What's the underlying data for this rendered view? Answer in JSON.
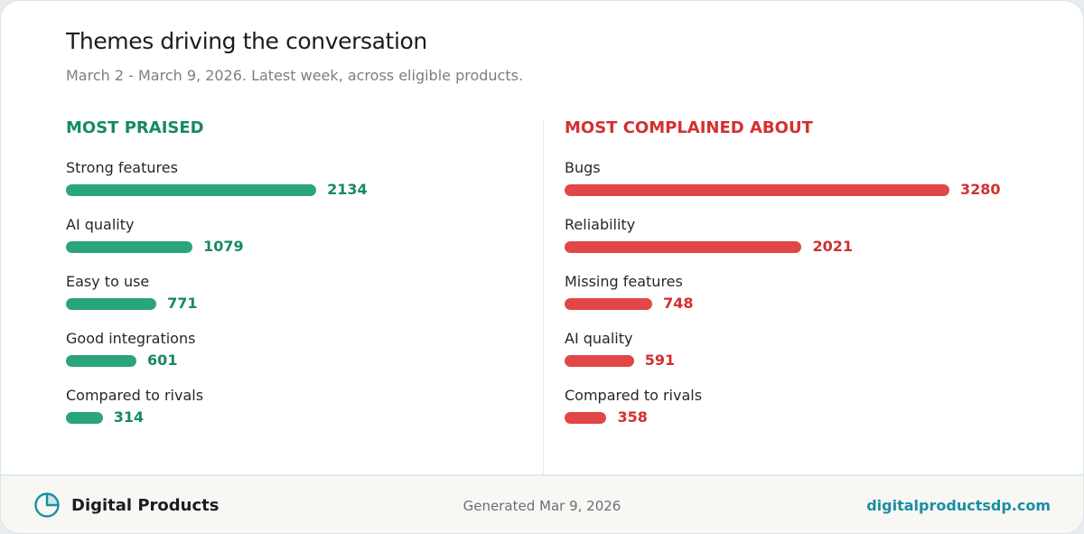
{
  "header": {
    "title": "Themes driving the conversation",
    "subtitle": "March 2 - March 9, 2026. Latest week, across eligible products."
  },
  "colors": {
    "praise": "#2aa57b",
    "praise_text": "#168a61",
    "complaint": "#e34646",
    "complaint_text": "#d3302f",
    "link": "#1a8ea4"
  },
  "chart_data": [
    {
      "type": "bar",
      "orientation": "horizontal",
      "title": "MOST PRAISED",
      "categories": [
        "Strong features",
        "AI quality",
        "Easy to use",
        "Good integrations",
        "Compared to rivals"
      ],
      "values": [
        2134,
        1079,
        771,
        601,
        314
      ]
    },
    {
      "type": "bar",
      "orientation": "horizontal",
      "title": "MOST COMPLAINED ABOUT",
      "categories": [
        "Bugs",
        "Reliability",
        "Missing features",
        "AI quality",
        "Compared to rivals"
      ],
      "values": [
        3280,
        2021,
        748,
        591,
        358
      ]
    }
  ],
  "footer": {
    "brand_icon": "pie-chart-icon",
    "brand": "Digital Products",
    "generated": "Generated Mar 9, 2026",
    "website": "digitalproductsdp.com"
  }
}
